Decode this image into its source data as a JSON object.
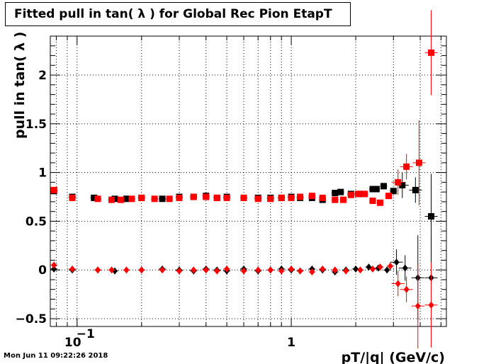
{
  "title": "Fitted pull in tan( λ ) for Global Rec Pion EtapT",
  "footer": "Mon Jun 11 09:22:26 2018",
  "chart_data": {
    "type": "scatter",
    "title": "Fitted pull in tan( λ ) for Global Rec Pion EtapT",
    "xlabel": "pT/|q| (GeV/c)",
    "ylabel": "pull in tan( λ )",
    "xscale": "log",
    "xlim": [
      0.075,
      5.3
    ],
    "ylim": [
      -0.58,
      2.4
    ],
    "x_ticklabels": [
      {
        "x": 0.1,
        "base": "10",
        "exp": "−1"
      },
      {
        "x": 1,
        "text": "1"
      }
    ],
    "y_ticks": [
      -0.5,
      0,
      0.5,
      1,
      1.5,
      2
    ],
    "y_ticklabels": [
      "−0.5",
      "0",
      "0.5",
      "1",
      "1.5",
      "2"
    ],
    "grid": true,
    "colors": {
      "black_series": "#000000",
      "red_series": "#ff0000"
    },
    "series": [
      {
        "marker": "square",
        "color": "#000000",
        "points": [
          [
            0.078,
            0.81
          ],
          [
            0.095,
            0.75
          ],
          [
            0.12,
            0.74
          ],
          [
            0.15,
            0.73
          ],
          [
            0.17,
            0.73
          ],
          [
            0.2,
            0.74
          ],
          [
            0.25,
            0.73
          ],
          [
            0.3,
            0.75
          ],
          [
            0.35,
            0.75
          ],
          [
            0.4,
            0.76
          ],
          [
            0.45,
            0.74
          ],
          [
            0.5,
            0.75
          ],
          [
            0.6,
            0.74
          ],
          [
            0.7,
            0.74
          ],
          [
            0.8,
            0.74
          ],
          [
            0.9,
            0.74
          ],
          [
            1.0,
            0.75
          ],
          [
            1.1,
            0.74
          ],
          [
            1.25,
            0.74
          ],
          [
            1.4,
            0.72
          ],
          [
            1.6,
            0.79
          ],
          [
            1.7,
            0.8
          ],
          [
            1.9,
            0.78
          ],
          [
            2.1,
            0.78
          ],
          [
            2.4,
            0.83
          ],
          [
            2.5,
            0.83
          ],
          [
            2.7,
            0.86
          ],
          [
            3.0,
            0.81
          ],
          [
            3.3,
            0.87
          ],
          [
            3.8,
            0.82
          ],
          [
            4.5,
            0.55
          ]
        ]
      },
      {
        "marker": "square",
        "color": "#ff0000",
        "points": [
          [
            0.078,
            0.82
          ],
          [
            0.095,
            0.74
          ],
          [
            0.125,
            0.73
          ],
          [
            0.145,
            0.72
          ],
          [
            0.16,
            0.72
          ],
          [
            0.18,
            0.73
          ],
          [
            0.2,
            0.74
          ],
          [
            0.23,
            0.73
          ],
          [
            0.27,
            0.73
          ],
          [
            0.3,
            0.74
          ],
          [
            0.35,
            0.75
          ],
          [
            0.4,
            0.75
          ],
          [
            0.45,
            0.74
          ],
          [
            0.5,
            0.74
          ],
          [
            0.6,
            0.74
          ],
          [
            0.7,
            0.73
          ],
          [
            0.8,
            0.73
          ],
          [
            0.9,
            0.74
          ],
          [
            1.0,
            0.74
          ],
          [
            1.1,
            0.75
          ],
          [
            1.25,
            0.76
          ],
          [
            1.4,
            0.74
          ],
          [
            1.6,
            0.72
          ],
          [
            1.75,
            0.72
          ],
          [
            1.9,
            0.77
          ],
          [
            2.05,
            0.78
          ],
          [
            2.2,
            0.78
          ],
          [
            2.4,
            0.71
          ],
          [
            2.6,
            0.69
          ],
          [
            2.85,
            0.76
          ],
          [
            3.15,
            0.9
          ],
          [
            3.45,
            1.06
          ],
          [
            3.95,
            1.1
          ],
          [
            4.5,
            2.23
          ]
        ]
      },
      {
        "marker": "diamond",
        "color": "#000000",
        "points": [
          [
            0.078,
            0.01
          ],
          [
            0.095,
            0.0
          ],
          [
            0.125,
            0.0
          ],
          [
            0.15,
            -0.01
          ],
          [
            0.2,
            0.0
          ],
          [
            0.25,
            0.01
          ],
          [
            0.3,
            0.0
          ],
          [
            0.35,
            -0.01
          ],
          [
            0.4,
            0.01
          ],
          [
            0.45,
            0.0
          ],
          [
            0.5,
            -0.01
          ],
          [
            0.6,
            0.01
          ],
          [
            0.7,
            -0.01
          ],
          [
            0.8,
            0.0
          ],
          [
            0.9,
            0.01
          ],
          [
            1.0,
            0.0
          ],
          [
            1.1,
            -0.01
          ],
          [
            1.25,
            0.01
          ],
          [
            1.4,
            0.0
          ],
          [
            1.6,
            -0.02
          ],
          [
            1.8,
            0.0
          ],
          [
            2.0,
            0.01
          ],
          [
            2.3,
            0.03
          ],
          [
            2.55,
            0.02
          ],
          [
            2.8,
            0.0
          ],
          [
            3.1,
            0.08
          ],
          [
            3.4,
            0.02
          ],
          [
            3.9,
            -0.08
          ],
          [
            4.5,
            -0.08
          ]
        ]
      },
      {
        "marker": "diamond",
        "color": "#ff0000",
        "points": [
          [
            0.078,
            0.05
          ],
          [
            0.095,
            0.01
          ],
          [
            0.125,
            0.0
          ],
          [
            0.145,
            0.0
          ],
          [
            0.17,
            0.0
          ],
          [
            0.2,
            0.0
          ],
          [
            0.25,
            0.0
          ],
          [
            0.3,
            -0.01
          ],
          [
            0.35,
            0.0
          ],
          [
            0.4,
            0.0
          ],
          [
            0.45,
            -0.01
          ],
          [
            0.5,
            0.01
          ],
          [
            0.6,
            -0.01
          ],
          [
            0.7,
            0.0
          ],
          [
            0.8,
            0.0
          ],
          [
            0.9,
            -0.01
          ],
          [
            1.0,
            0.01
          ],
          [
            1.1,
            -0.01
          ],
          [
            1.25,
            -0.02
          ],
          [
            1.4,
            0.01
          ],
          [
            1.6,
            0.0
          ],
          [
            1.8,
            -0.01
          ],
          [
            2.1,
            0.0
          ],
          [
            2.4,
            0.01
          ],
          [
            2.6,
            0.03
          ],
          [
            2.9,
            0.04
          ],
          [
            3.15,
            -0.14
          ],
          [
            3.45,
            -0.2
          ],
          [
            3.9,
            -0.37
          ],
          [
            4.5,
            -0.36
          ]
        ]
      }
    ]
  }
}
